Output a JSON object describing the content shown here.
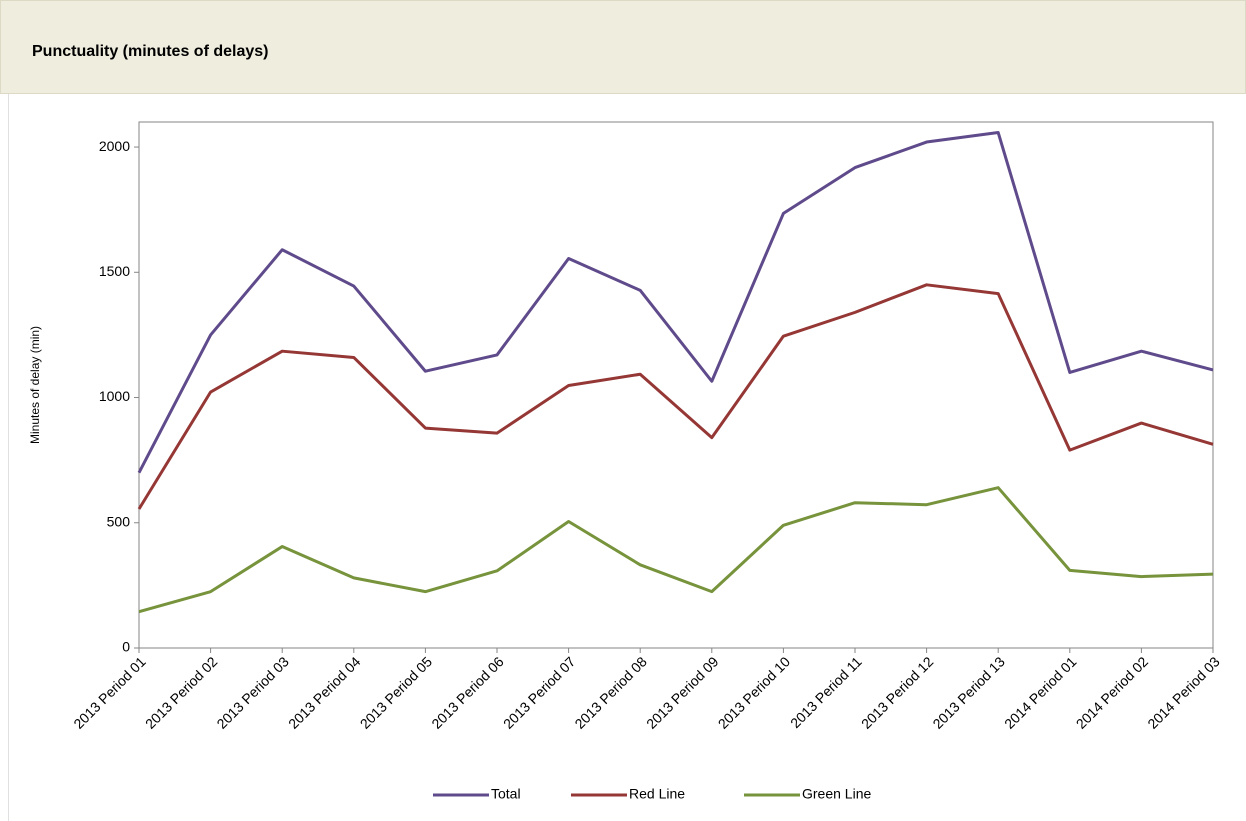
{
  "page_title": "Punctuality (minutes of delays)",
  "chart_data": {
    "type": "line",
    "y_label": "Minutes of delay (min)",
    "categories": [
      "2013 Period 01",
      "2013 Period 02",
      "2013 Period 03",
      "2013 Period 04",
      "2013 Period 05",
      "2013 Period 06",
      "2013 Period 07",
      "2013 Period 08",
      "2013 Period 09",
      "2013 Period 10",
      "2013 Period 11",
      "2013 Period 12",
      "2013 Period 13",
      "2014 Period 01",
      "2014 Period 02",
      "2014 Period 03"
    ],
    "series": [
      {
        "name": "Total",
        "color": "#5f4b8b",
        "values": [
          700,
          1250,
          1590,
          1445,
          1105,
          1170,
          1555,
          1428,
          1065,
          1735,
          1918,
          2020,
          2058,
          1100,
          1185,
          1110
        ]
      },
      {
        "name": "Red Line",
        "color": "#953735",
        "values": [
          555,
          1022,
          1185,
          1160,
          878,
          858,
          1048,
          1093,
          840,
          1245,
          1340,
          1450,
          1415,
          790,
          898,
          813
        ]
      },
      {
        "name": "Green Line",
        "color": "#77933c",
        "values": [
          145,
          225,
          405,
          280,
          225,
          308,
          505,
          332,
          225,
          490,
          580,
          572,
          640,
          310,
          285,
          295
        ]
      }
    ],
    "ylim": [
      0,
      2100
    ],
    "yticks": [
      0,
      500,
      1000,
      1500,
      2000
    ],
    "grid": false,
    "legend": "bottom"
  }
}
